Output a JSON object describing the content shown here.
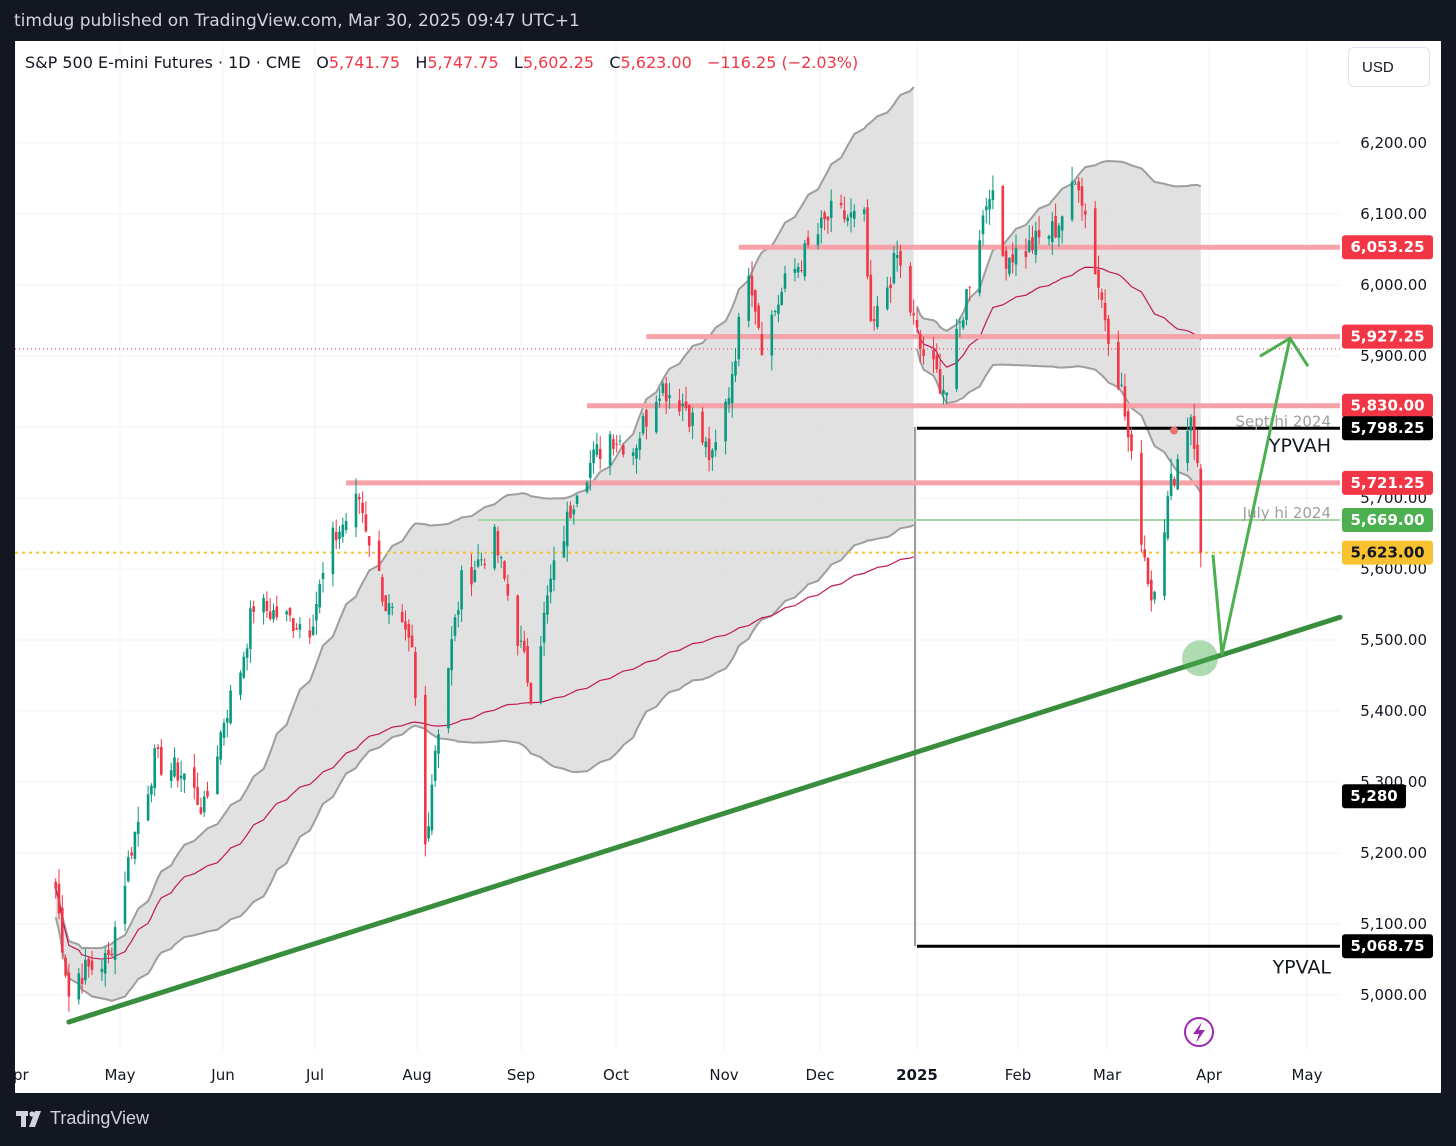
{
  "header": {
    "publisher_line": "timdug published on TradingView.com, Mar 30, 2025 09:47 UTC+1"
  },
  "legend": {
    "symbol": "S&P 500 E-mini Futures · 1D · CME",
    "open_label": "O",
    "open": "5,741.75",
    "high_label": "H",
    "high": "5,747.75",
    "low_label": "L",
    "low": "5,602.25",
    "close_label": "C",
    "close": "5,623.00",
    "change": "−116.25 (−2.03%)"
  },
  "currency": "USD",
  "price_axis": [
    "6,200.00",
    "6,100.00",
    "6,000.00",
    "5,900.00",
    "5,800.00",
    "5,700.00",
    "5,600.00",
    "5,500.00",
    "5,400.00",
    "5,300.00",
    "5,200.00",
    "5,100.00",
    "5,000.00"
  ],
  "time_axis": [
    "pr",
    "May",
    "Jun",
    "Jul",
    "Aug",
    "Sep",
    "Oct",
    "Nov",
    "Dec",
    "2025",
    "Feb",
    "Mar",
    "Apr",
    "May"
  ],
  "price_tags": [
    {
      "name": "level-6053-tag",
      "text": "6,053.25",
      "bg": "#f23645",
      "color": "#ffffff",
      "price": 6053.25
    },
    {
      "name": "level-5927-tag",
      "text": "5,927.25",
      "bg": "#f23645",
      "color": "#ffffff",
      "price": 5927.25
    },
    {
      "name": "level-5830-tag",
      "text": "5,830.00",
      "bg": "#f23645",
      "color": "#ffffff",
      "price": 5830.0
    },
    {
      "name": "ypvah-tag",
      "text": "5,798.25",
      "bg": "#000000",
      "color": "#ffffff",
      "price": 5798.25
    },
    {
      "name": "level-5721-tag",
      "text": "5,721.25",
      "bg": "#f23645",
      "color": "#ffffff",
      "price": 5721.25
    },
    {
      "name": "level-5669-tag",
      "text": "5,669.00",
      "bg": "#4caf50",
      "color": "#ffffff",
      "price": 5669.0
    },
    {
      "name": "last-price-tag",
      "text": "5,623.00",
      "bg": "#f7c130",
      "color": "#131722",
      "price": 5623.0
    },
    {
      "name": "level-5280-tag",
      "text": "5,280",
      "bg": "#000000",
      "color": "#ffffff",
      "price": 5280.0
    },
    {
      "name": "ypval-tag",
      "text": "5,068.75",
      "bg": "#000000",
      "color": "#ffffff",
      "price": 5068.75
    }
  ],
  "annotations": {
    "sept_hi": "Sept hi 2024",
    "july_hi": "July hi 2024",
    "ypvah": "YPVAH",
    "ypval": "YPVAL"
  },
  "branding": "TradingView",
  "colors": {
    "up": "#089981",
    "down": "#f23645",
    "trendline": "#388e3c",
    "arrow": "#4caf50",
    "resistance": "#f7a1a8"
  },
  "chart_data": {
    "type": "candlestick",
    "instrument": "S&P 500 E-mini Futures",
    "timeframe": "1D",
    "ylim": [
      4940,
      6300
    ],
    "last_close": 5623.0,
    "horizontal_levels": [
      6053.25,
      5927.25,
      5830.0,
      5798.25,
      5721.25,
      5669.0,
      5623.0,
      5068.75
    ],
    "close_path": [
      [
        "2024-04-15",
        5150
      ],
      [
        "2024-04-19",
        5000
      ],
      [
        "2024-04-22",
        5030
      ],
      [
        "2024-05-01",
        5050
      ],
      [
        "2024-05-08",
        5210
      ],
      [
        "2024-05-15",
        5330
      ],
      [
        "2024-05-24",
        5310
      ],
      [
        "2024-05-30",
        5260
      ],
      [
        "2024-06-05",
        5390
      ],
      [
        "2024-06-10",
        5460
      ],
      [
        "2024-06-14",
        5550
      ],
      [
        "2024-06-24",
        5530
      ],
      [
        "2024-07-01",
        5520
      ],
      [
        "2024-07-08",
        5640
      ],
      [
        "2024-07-16",
        5700
      ],
      [
        "2024-07-24",
        5550
      ],
      [
        "2024-08-01",
        5480
      ],
      [
        "2024-08-05",
        5210
      ],
      [
        "2024-08-08",
        5350
      ],
      [
        "2024-08-16",
        5580
      ],
      [
        "2024-08-26",
        5640
      ],
      [
        "2024-09-06",
        5430
      ],
      [
        "2024-09-12",
        5580
      ],
      [
        "2024-09-20",
        5720
      ],
      [
        "2024-09-30",
        5790
      ],
      [
        "2024-10-07",
        5770
      ],
      [
        "2024-10-15",
        5860
      ],
      [
        "2024-10-23",
        5830
      ],
      [
        "2024-10-31",
        5750
      ],
      [
        "2024-11-05",
        5850
      ],
      [
        "2024-11-11",
        6030
      ],
      [
        "2024-11-15",
        5920
      ],
      [
        "2024-11-22",
        6000
      ],
      [
        "2024-12-06",
        6100
      ],
      [
        "2024-12-16",
        6090
      ],
      [
        "2024-12-18",
        5930
      ],
      [
        "2024-12-26",
        6040
      ],
      [
        "2025-01-02",
        5910
      ],
      [
        "2025-01-10",
        5850
      ],
      [
        "2025-01-17",
        6010
      ],
      [
        "2025-01-23",
        6140
      ],
      [
        "2025-01-27",
        6040
      ],
      [
        "2025-02-03",
        6050
      ],
      [
        "2025-02-12",
        6080
      ],
      [
        "2025-02-19",
        6150
      ],
      [
        "2025-02-25",
        6000
      ],
      [
        "2025-03-04",
        5850
      ],
      [
        "2025-03-10",
        5650
      ],
      [
        "2025-03-13",
        5560
      ],
      [
        "2025-03-19",
        5720
      ],
      [
        "2025-03-25",
        5820
      ],
      [
        "2025-03-27",
        5740
      ],
      [
        "2025-03-28",
        5623
      ]
    ]
  }
}
